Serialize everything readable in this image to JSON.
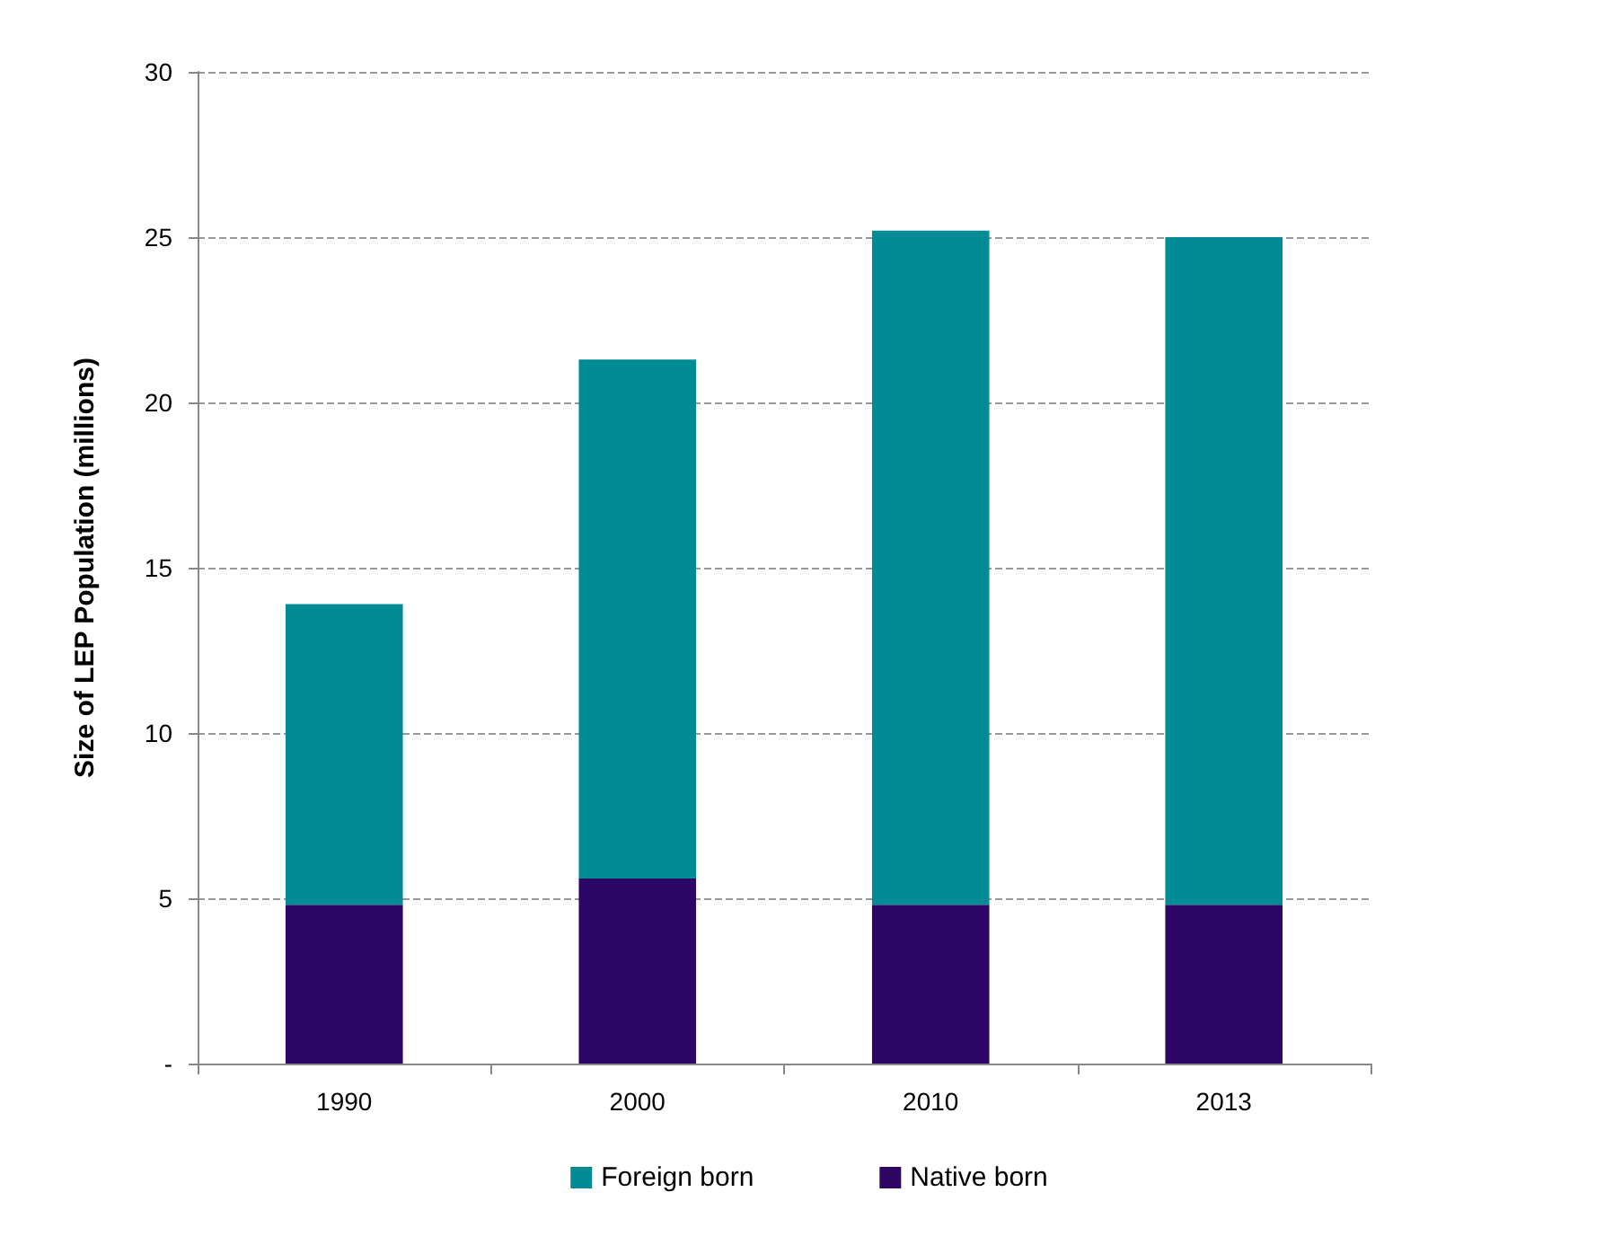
{
  "chart_data": {
    "type": "bar",
    "stacked": true,
    "ylabel": "Size of LEP Population (millions)",
    "categories": [
      "1990",
      "2000",
      "2010",
      "2013"
    ],
    "series": [
      {
        "name": "Native born",
        "color": "#2e0666",
        "values": [
          4.8,
          5.6,
          4.8,
          4.8
        ]
      },
      {
        "name": "Foreign born",
        "color": "#008b95",
        "values": [
          9.1,
          15.7,
          20.4,
          20.2
        ]
      }
    ],
    "ylim": [
      0,
      30
    ],
    "yticks": [
      {
        "value": 0,
        "label": "-"
      },
      5,
      10,
      15,
      20,
      25,
      30
    ],
    "grid": "y",
    "line_style": "dashed",
    "legend": "bottom"
  }
}
